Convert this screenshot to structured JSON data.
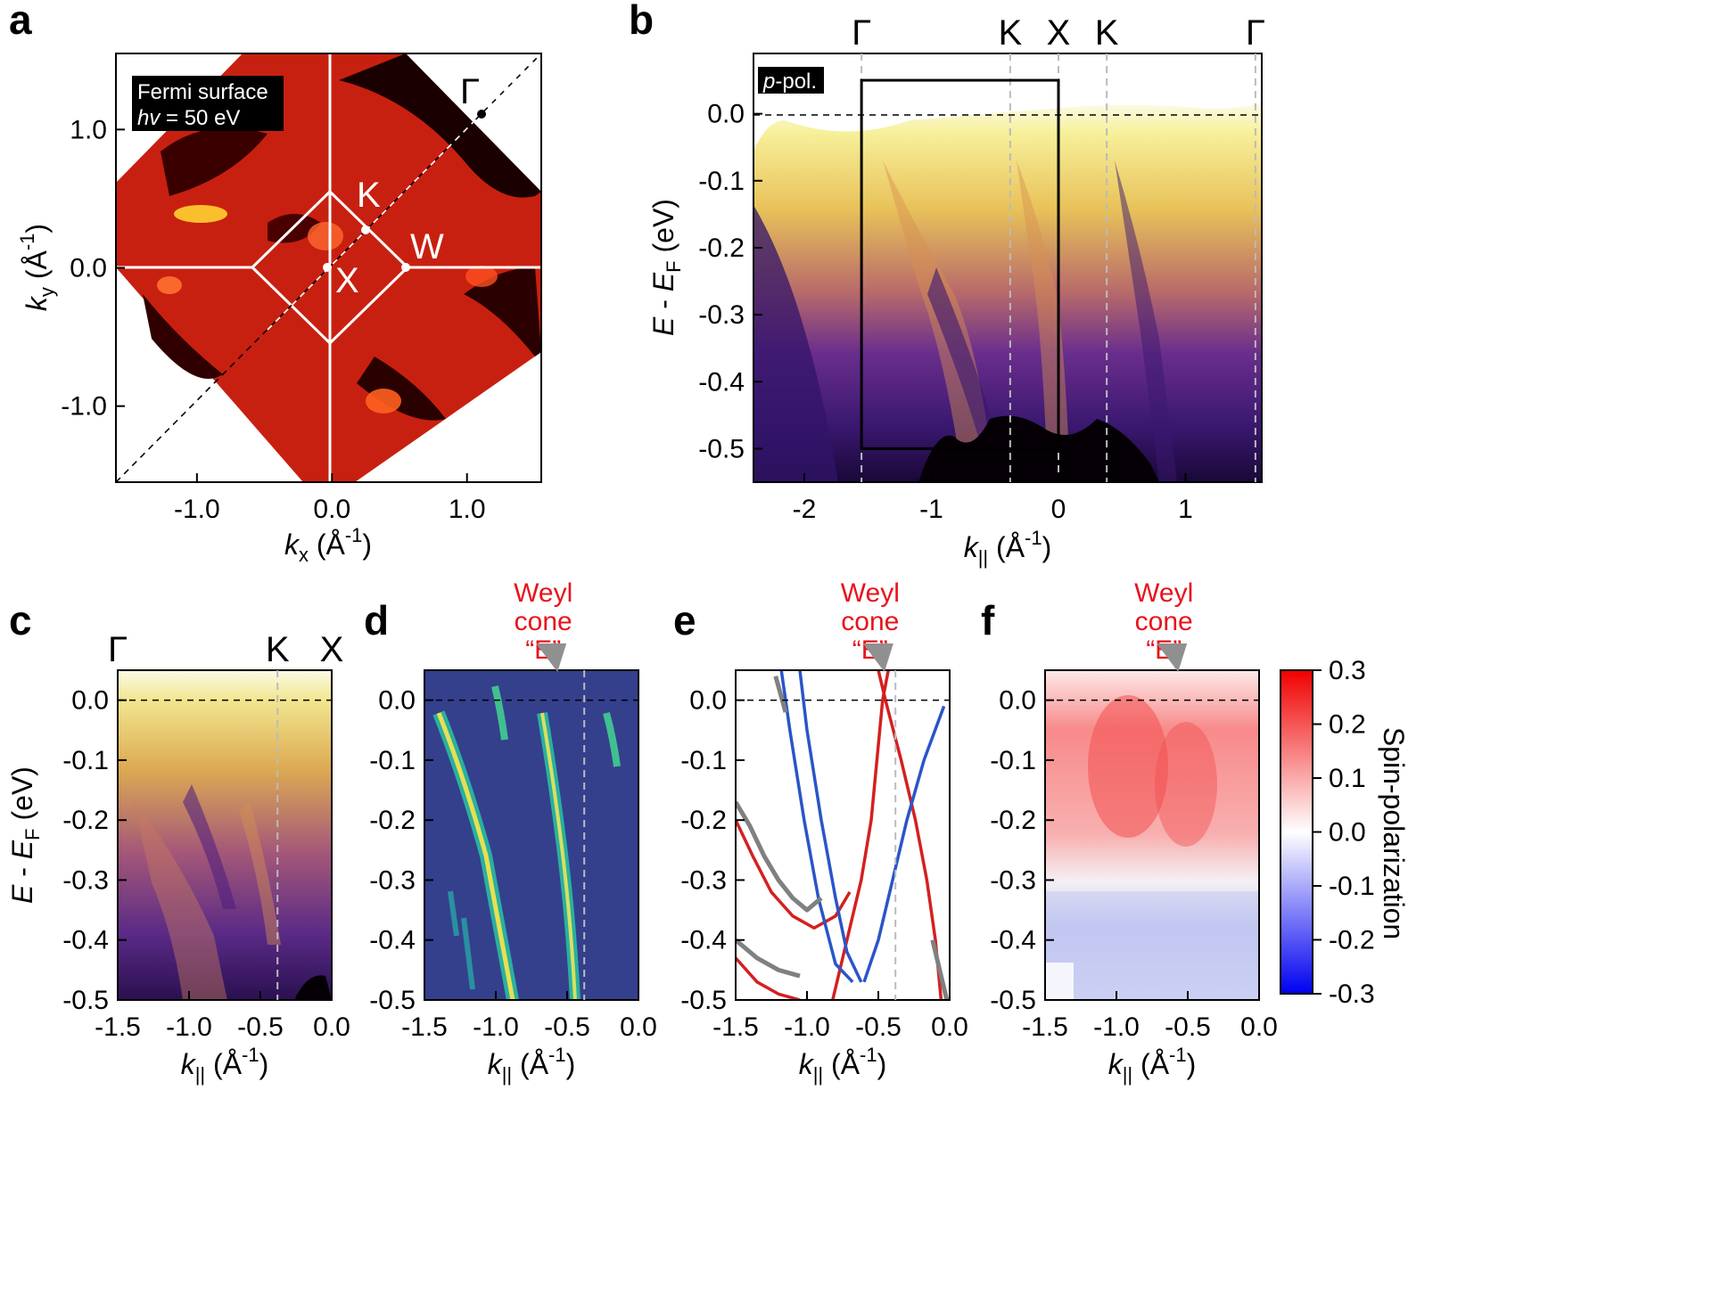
{
  "panels": {
    "a": {
      "label": "a",
      "inset_title": "Fermi surface",
      "inset_hv_var": "hv",
      "inset_hv_value": " = 50 eV",
      "xlabel_var": "k",
      "xlabel_sub": "x",
      "xlabel_unit": " (Å",
      "xlabel_exp": "-1",
      "xlabel_close": ")",
      "ylabel_var": "k",
      "ylabel_sub": "y",
      "ylabel_unit": " (Å",
      "ylabel_exp": "-1",
      "ylabel_close": ")",
      "points": [
        "Γ",
        "K",
        "W",
        "X"
      ]
    },
    "b": {
      "label": "b",
      "pol_var": "p",
      "pol_rest": "-pol.",
      "kpoints": [
        "Γ",
        "K",
        "X",
        "K",
        "Γ"
      ]
    },
    "c": {
      "label": "c",
      "kpoints": [
        "Γ",
        "K",
        "X"
      ]
    },
    "d": {
      "label": "d",
      "annotation": [
        "Weyl",
        "cone",
        "“E”"
      ]
    },
    "e": {
      "label": "e",
      "annotation": [
        "Weyl",
        "cone",
        "“E”"
      ]
    },
    "f": {
      "label": "f",
      "annotation": [
        "Weyl",
        "cone",
        "“E”"
      ],
      "colorbar_label": "Spin-polarization"
    }
  },
  "energy_axis": {
    "var": "E",
    "mid": " - ",
    "var2": "E",
    "sub": "F",
    "unit": " (eV)"
  },
  "kpar_axis": {
    "var": "k",
    "sub": "||",
    "unit": " (Å",
    "exp": "-1",
    "close": ")"
  },
  "colors": {
    "weyl_red": "#e8141c",
    "band_red": "#d42020",
    "band_blue": "#2a55c8",
    "band_gray": "#808080"
  },
  "chart_data": [
    {
      "panel": "a",
      "type": "heatmap",
      "title": "Fermi surface",
      "photon_energy_eV": 50,
      "x_range": [
        -1.6,
        1.55
      ],
      "y_range": [
        -1.55,
        1.55
      ],
      "xticks": [
        "-1.0",
        "0.0",
        "1.0"
      ],
      "yticks": [
        "1.0",
        "0.0",
        "-1.0"
      ],
      "high_symmetry_points": [
        {
          "name": "Γ",
          "kx": 1.1,
          "ky": 1.1
        },
        {
          "name": "K",
          "kx": 0.27,
          "ky": 0.27
        },
        {
          "name": "W",
          "kx": 0.55,
          "ky": 0.0
        },
        {
          "name": "X",
          "kx": 0.0,
          "ky": 0.0
        }
      ],
      "brillouin_zone": {
        "square_half_diagonal": 0.55
      }
    },
    {
      "panel": "b",
      "type": "heatmap",
      "x_range": [
        -2.4,
        1.6
      ],
      "y_range": [
        -0.55,
        0.09
      ],
      "xticks": [
        "-2",
        "-1",
        "0",
        "1"
      ],
      "yticks": [
        "0.0",
        "-0.1",
        "-0.2",
        "-0.3",
        "-0.4",
        "-0.5"
      ],
      "kpoint_positions": [
        -1.55,
        -0.38,
        0.0,
        0.38,
        1.55
      ],
      "zoom_box": {
        "k": [
          -1.55,
          0.0
        ],
        "E": [
          -0.5,
          0.05
        ]
      }
    },
    {
      "panel": "c",
      "type": "heatmap",
      "x_range": [
        -1.5,
        0.0
      ],
      "y_range": [
        -0.5,
        0.05
      ],
      "xticks": [
        "-1.5",
        "-1.0",
        "-0.5",
        "0.0"
      ],
      "yticks": [
        "0.0",
        "-0.1",
        "-0.2",
        "-0.3",
        "-0.4",
        "-0.5"
      ],
      "k_line": -0.38
    },
    {
      "panel": "d",
      "type": "heatmap",
      "x_range": [
        -1.5,
        0.0
      ],
      "y_range": [
        -0.5,
        0.05
      ],
      "xticks": [
        "-1.5",
        "-1.0",
        "-0.5",
        "0.0"
      ],
      "yticks": [
        "0.0",
        "-0.1",
        "-0.2",
        "-0.3",
        "-0.4",
        "-0.5"
      ],
      "weyl_cone_k": -0.58,
      "k_line": -0.38
    },
    {
      "panel": "e",
      "type": "line",
      "x_range": [
        -1.5,
        0.0
      ],
      "y_range": [
        -0.5,
        0.05
      ],
      "xticks": [
        "-1.5",
        "-1.0",
        "-0.5",
        "0.0"
      ],
      "yticks": [
        "0.0",
        "-0.1",
        "-0.2",
        "-0.3",
        "-0.4",
        "-0.5"
      ],
      "weyl_cone_k": -0.47,
      "k_line": -0.38,
      "series": [
        {
          "name": "red",
          "points": [
            [
              -0.82,
              -0.5
            ],
            [
              -0.72,
              -0.4
            ],
            [
              -0.62,
              -0.3
            ],
            [
              -0.55,
              -0.2
            ],
            [
              -0.51,
              -0.1
            ],
            [
              -0.47,
              0.0
            ],
            [
              -0.43,
              0.05
            ]
          ]
        },
        {
          "name": "red",
          "points": [
            [
              -0.06,
              -0.5
            ],
            [
              -0.1,
              -0.4
            ],
            [
              -0.16,
              -0.3
            ],
            [
              -0.24,
              -0.2
            ],
            [
              -0.34,
              -0.1
            ],
            [
              -0.45,
              0.0
            ],
            [
              -0.5,
              0.05
            ]
          ]
        },
        {
          "name": "red",
          "points": [
            [
              -1.5,
              -0.2
            ],
            [
              -1.38,
              -0.26
            ],
            [
              -1.25,
              -0.32
            ],
            [
              -1.1,
              -0.36
            ],
            [
              -0.95,
              -0.38
            ],
            [
              -0.8,
              -0.36
            ],
            [
              -0.7,
              -0.32
            ]
          ]
        },
        {
          "name": "red",
          "points": [
            [
              -1.5,
              -0.43
            ],
            [
              -1.35,
              -0.47
            ],
            [
              -1.2,
              -0.49
            ],
            [
              -1.05,
              -0.5
            ]
          ]
        },
        {
          "name": "blue",
          "points": [
            [
              -1.18,
              0.05
            ],
            [
              -1.12,
              -0.05
            ],
            [
              -1.02,
              -0.2
            ],
            [
              -0.92,
              -0.33
            ],
            [
              -0.8,
              -0.44
            ],
            [
              -0.68,
              -0.47
            ]
          ]
        },
        {
          "name": "blue",
          "points": [
            [
              -1.05,
              0.05
            ],
            [
              -1.0,
              -0.05
            ],
            [
              -0.9,
              -0.2
            ],
            [
              -0.8,
              -0.33
            ],
            [
              -0.72,
              -0.42
            ],
            [
              -0.62,
              -0.47
            ]
          ]
        },
        {
          "name": "blue",
          "points": [
            [
              -0.6,
              -0.47
            ],
            [
              -0.5,
              -0.4
            ],
            [
              -0.4,
              -0.3
            ],
            [
              -0.3,
              -0.2
            ],
            [
              -0.18,
              -0.1
            ],
            [
              -0.04,
              -0.01
            ]
          ]
        },
        {
          "name": "gray",
          "points": [
            [
              -1.5,
              -0.17
            ],
            [
              -1.4,
              -0.21
            ],
            [
              -1.3,
              -0.26
            ],
            [
              -1.2,
              -0.3
            ],
            [
              -1.1,
              -0.33
            ],
            [
              -1.0,
              -0.35
            ],
            [
              -0.9,
              -0.33
            ]
          ]
        },
        {
          "name": "gray",
          "points": [
            [
              -1.5,
              -0.4
            ],
            [
              -1.35,
              -0.43
            ],
            [
              -1.2,
              -0.45
            ],
            [
              -1.05,
              -0.46
            ]
          ]
        },
        {
          "name": "gray",
          "points": [
            [
              -1.22,
              0.04
            ],
            [
              -1.15,
              -0.02
            ]
          ]
        },
        {
          "name": "gray",
          "points": [
            [
              -0.12,
              -0.4
            ],
            [
              -0.06,
              -0.46
            ],
            [
              -0.02,
              -0.5
            ]
          ]
        }
      ]
    },
    {
      "panel": "f",
      "type": "heatmap",
      "x_range": [
        -1.5,
        0.0
      ],
      "y_range": [
        -0.5,
        0.05
      ],
      "xticks": [
        "-1.5",
        "-1.0",
        "-0.5",
        "0.0"
      ],
      "yticks": [
        "0.0",
        "-0.1",
        "-0.2",
        "-0.3",
        "-0.4",
        "-0.5"
      ],
      "weyl_cone_k": -0.58,
      "colorbar": {
        "min": -0.3,
        "max": 0.3,
        "ticks": [
          "0.3",
          "0.2",
          "0.1",
          "0.0",
          "-0.1",
          "-0.2",
          "-0.3"
        ],
        "label": "Spin-polarization"
      }
    }
  ]
}
